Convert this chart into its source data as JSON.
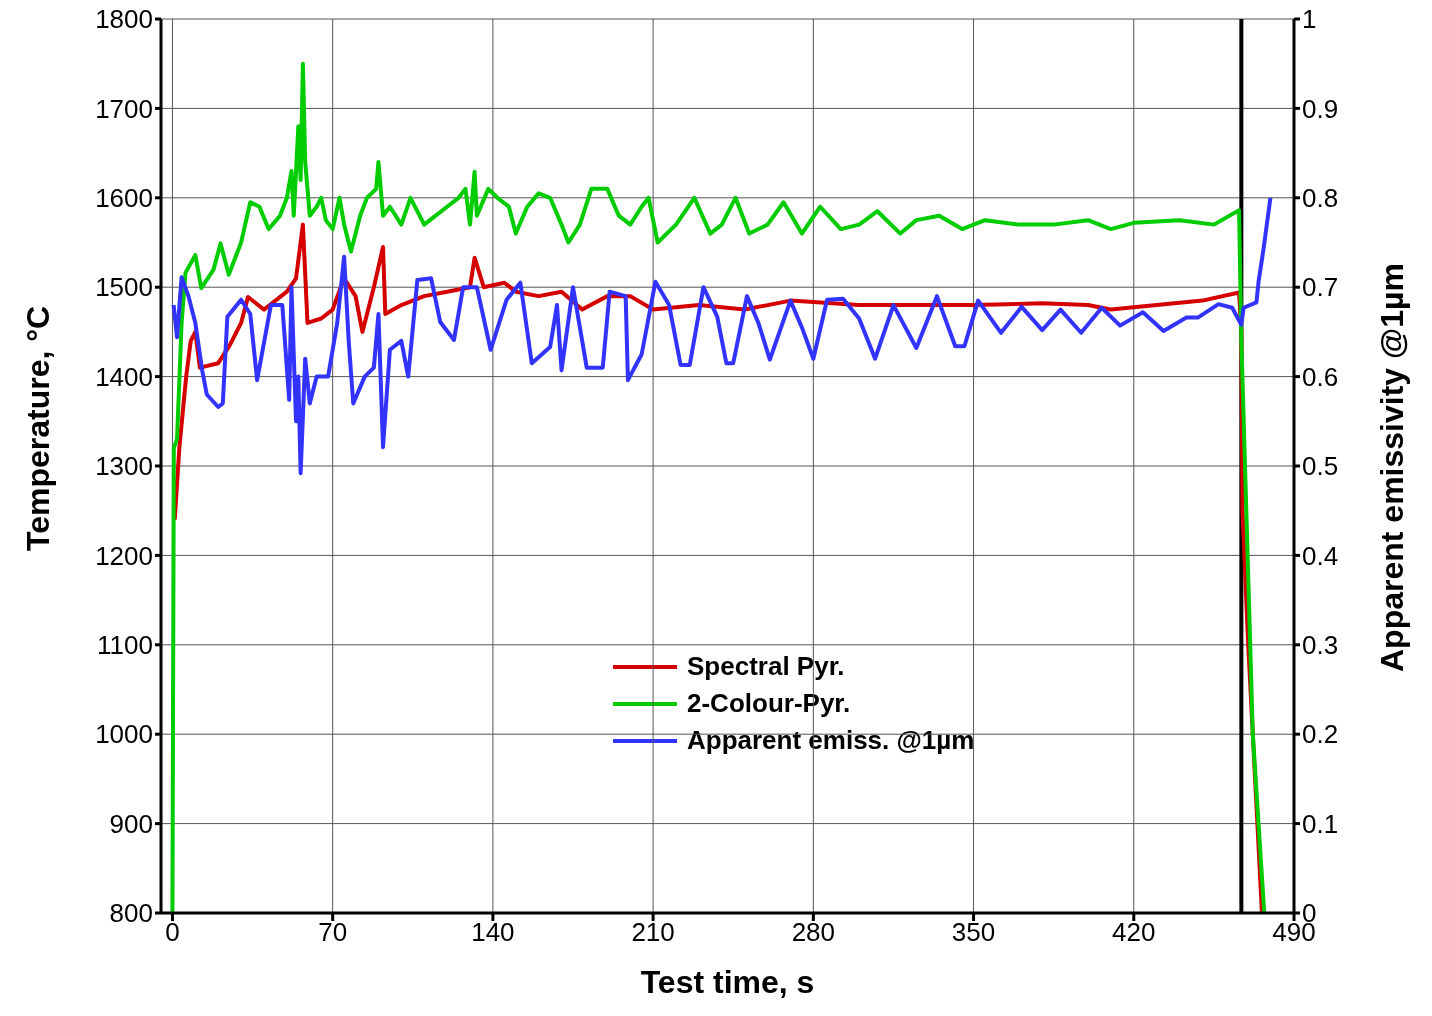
{
  "chart_data": {
    "type": "line",
    "xlabel": "Test time, s",
    "ylabel": "Temperature, °C",
    "y2label": "Apparent emissivity @1µm",
    "xlim": [
      -5,
      490
    ],
    "xticks": [
      0,
      70,
      140,
      210,
      280,
      350,
      420,
      490
    ],
    "ylim": [
      800,
      1800
    ],
    "yticks": [
      800,
      900,
      1000,
      1100,
      1200,
      1300,
      1400,
      1500,
      1600,
      1700,
      1800
    ],
    "y2lim": [
      0,
      1
    ],
    "y2ticks": [
      0,
      0.1,
      0.2,
      0.3,
      0.4,
      0.5,
      0.6,
      0.7,
      0.8,
      0.9,
      1
    ],
    "grid": true,
    "legend": "bottom",
    "marker": "none",
    "line_style": "solid",
    "ref_lines": [
      {
        "axis": "x",
        "value": 467,
        "color": "#000000"
      }
    ],
    "series": [
      {
        "name": "Spectral Pyr.",
        "color": "#d40000",
        "x": [
          1,
          3,
          6,
          8,
          10,
          12,
          20,
          25,
          30,
          33,
          40,
          45,
          50,
          54,
          57,
          59,
          65,
          70,
          75,
          80,
          83,
          88,
          92,
          93,
          100,
          110,
          120,
          130,
          132,
          136,
          145,
          150,
          160,
          170,
          179,
          190,
          200,
          210,
          230,
          250,
          270,
          300,
          330,
          350,
          380,
          400,
          410,
          430,
          450,
          466,
          467,
          467.5,
          470,
          476
        ],
        "values": [
          1240,
          1320,
          1400,
          1440,
          1450,
          1410,
          1415,
          1435,
          1460,
          1489,
          1475,
          1485,
          1495,
          1510,
          1570,
          1460,
          1465,
          1475,
          1510,
          1490,
          1450,
          1500,
          1545,
          1470,
          1480,
          1490,
          1495,
          1500,
          1533,
          1500,
          1505,
          1495,
          1490,
          1495,
          1475,
          1490,
          1490,
          1475,
          1480,
          1475,
          1485,
          1480,
          1480,
          1480,
          1482,
          1480,
          1475,
          1480,
          1485,
          1494,
          1450,
          1250,
          1100,
          800
        ]
      },
      {
        "name": "2-Colour-Pyr.",
        "color": "#00cc00",
        "x": [
          0,
          0.6,
          2,
          4,
          5.7,
          10,
          12.6,
          18,
          21,
          24.6,
          30,
          34,
          38,
          42,
          47,
          50,
          52,
          53,
          55,
          56,
          57,
          58,
          60,
          63,
          65,
          67,
          70,
          73,
          75,
          78,
          82,
          85,
          89,
          90,
          92,
          95,
          100,
          104,
          110,
          115,
          120,
          125,
          128,
          130,
          132,
          133,
          138,
          142,
          147,
          150,
          155,
          160,
          165,
          170,
          173,
          178,
          183,
          190,
          195,
          200,
          205,
          208,
          212,
          220,
          228,
          235,
          240,
          246,
          252,
          260,
          267,
          275,
          283,
          292,
          300,
          308,
          318,
          325,
          335,
          345,
          355,
          370,
          385,
          400,
          410,
          420,
          440,
          455,
          466,
          467,
          472,
          477
        ],
        "values": [
          800,
          1320,
          1330,
          1460,
          1516,
          1536,
          1499,
          1520,
          1549,
          1514,
          1550,
          1595,
          1590,
          1565,
          1580,
          1600,
          1630,
          1580,
          1680,
          1620,
          1750,
          1640,
          1580,
          1590,
          1600,
          1575,
          1565,
          1600,
          1570,
          1540,
          1580,
          1600,
          1610,
          1640,
          1580,
          1590,
          1570,
          1600,
          1570,
          1580,
          1590,
          1600,
          1610,
          1570,
          1629,
          1580,
          1610,
          1600,
          1590,
          1560,
          1590,
          1605,
          1600,
          1570,
          1550,
          1570,
          1610,
          1610,
          1580,
          1570,
          1590,
          1600,
          1550,
          1570,
          1600,
          1560,
          1570,
          1600,
          1560,
          1570,
          1595,
          1560,
          1590,
          1565,
          1570,
          1585,
          1560,
          1575,
          1580,
          1565,
          1575,
          1570,
          1570,
          1575,
          1565,
          1572,
          1575,
          1570,
          1586,
          1440,
          1000,
          800
        ]
      },
      {
        "name": "Apparent emiss. @1µm",
        "color": "#3333ff",
        "axis": "y2",
        "x": [
          0.5,
          2,
          4,
          7,
          10,
          13,
          15,
          20,
          22,
          24,
          30,
          34,
          37,
          43,
          48,
          51,
          52,
          54,
          55,
          56,
          58,
          60,
          63,
          68,
          72,
          75,
          77,
          79,
          84,
          88,
          90,
          92,
          95,
          100,
          103,
          107,
          113,
          117,
          123,
          127,
          133,
          139,
          146,
          152,
          157,
          165,
          168,
          170,
          175,
          181,
          188,
          191,
          198,
          199,
          205,
          211,
          217,
          222,
          226,
          232,
          238,
          242,
          245,
          251,
          256,
          261,
          270,
          275,
          280,
          286,
          293,
          300,
          307,
          315,
          325,
          334,
          342,
          346,
          352,
          362,
          371,
          380,
          388,
          397,
          406,
          414,
          424,
          433,
          443,
          448,
          457,
          463,
          467,
          468,
          473.6,
          474.5,
          476.7,
          479.7
        ],
        "values": [
          0.68,
          0.644,
          0.711,
          0.69,
          0.66,
          0.607,
          0.58,
          0.566,
          0.57,
          0.667,
          0.686,
          0.67,
          0.596,
          0.68,
          0.68,
          0.574,
          0.7,
          0.55,
          0.6,
          0.492,
          0.62,
          0.57,
          0.6,
          0.6,
          0.66,
          0.734,
          0.64,
          0.57,
          0.6,
          0.61,
          0.67,
          0.521,
          0.63,
          0.64,
          0.6,
          0.708,
          0.71,
          0.661,
          0.641,
          0.7,
          0.7,
          0.63,
          0.686,
          0.705,
          0.615,
          0.633,
          0.68,
          0.607,
          0.7,
          0.61,
          0.61,
          0.695,
          0.69,
          0.596,
          0.625,
          0.706,
          0.68,
          0.613,
          0.613,
          0.7,
          0.667,
          0.615,
          0.615,
          0.69,
          0.66,
          0.619,
          0.685,
          0.655,
          0.62,
          0.686,
          0.687,
          0.665,
          0.62,
          0.68,
          0.632,
          0.69,
          0.634,
          0.634,
          0.685,
          0.649,
          0.678,
          0.652,
          0.675,
          0.649,
          0.677,
          0.657,
          0.672,
          0.651,
          0.666,
          0.666,
          0.681,
          0.677,
          0.658,
          0.677,
          0.683,
          0.706,
          0.743,
          0.8
        ]
      }
    ]
  }
}
